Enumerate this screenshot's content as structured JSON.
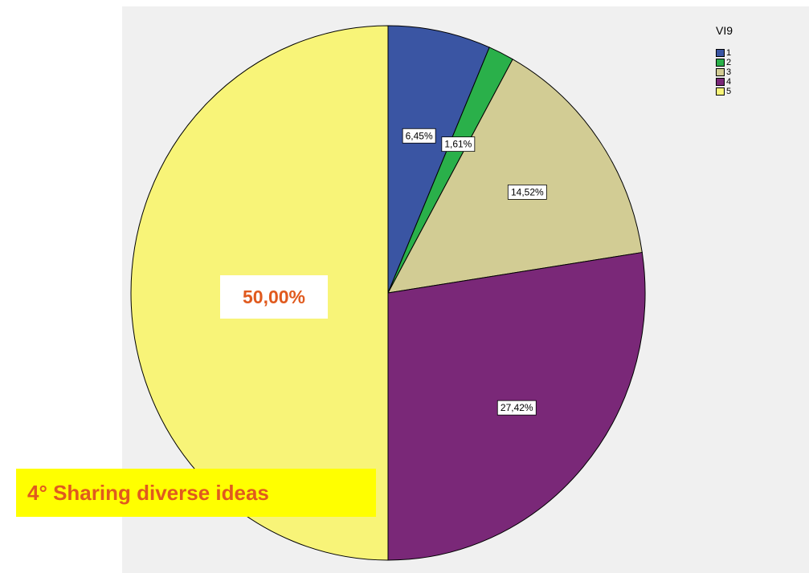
{
  "chart_data": {
    "type": "pie",
    "legend_title": "VI9",
    "legend_position": "top-right",
    "categories": [
      "1",
      "2",
      "3",
      "4",
      "5"
    ],
    "values": [
      6.45,
      1.61,
      14.52,
      27.42,
      50.0
    ],
    "labels": [
      "6,45%",
      "1,61%",
      "14,52%",
      "27,42%",
      "50,00%"
    ],
    "colors": [
      "#3a55a3",
      "#2ab04a",
      "#d2cc94",
      "#7a2878",
      "#f8f478"
    ]
  },
  "caption": "4° Sharing diverse ideas"
}
